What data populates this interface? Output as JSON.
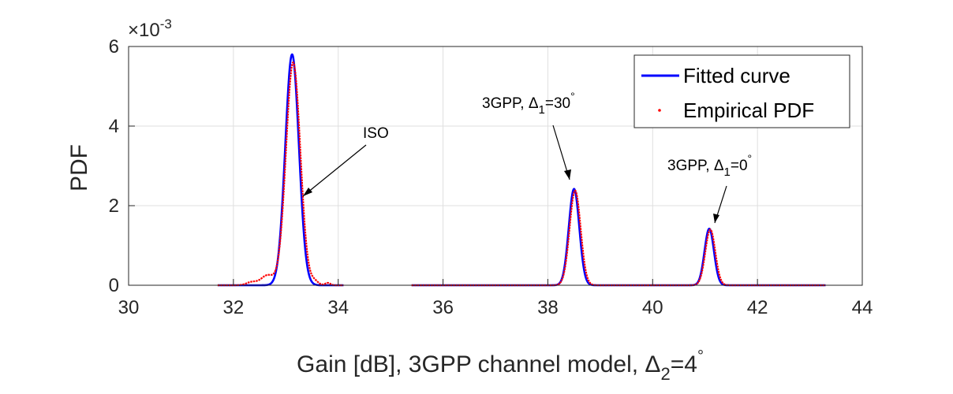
{
  "chart_data": {
    "type": "line",
    "xlabel": {
      "main": "Gain [dB], 3GPP channel model, ",
      "greek": "Δ",
      "sub": "2",
      "tail": "=4",
      "sup": "°"
    },
    "ylabel": "PDF",
    "y_exponent": {
      "prefix": "×10",
      "power": "-3"
    },
    "xlim": [
      30,
      44
    ],
    "ylim": [
      0,
      6
    ],
    "x_ticks": [
      "30",
      "32",
      "34",
      "36",
      "38",
      "40",
      "42",
      "44"
    ],
    "y_ticks": [
      "0",
      "2",
      "4",
      "6"
    ],
    "grid": true,
    "legend": {
      "position": "top-right",
      "entries": [
        {
          "label": "Fitted curve",
          "style": "line",
          "color": "#0000ff"
        },
        {
          "label": "Empirical PDF",
          "style": "dots",
          "color": "#ff0000"
        }
      ]
    },
    "peaks": [
      {
        "name": "ISO",
        "range": [
          31.7,
          34.1
        ],
        "center": 33.12,
        "amplitude_fit": 5.8,
        "amplitude_emp": 5.6,
        "width": 0.13
      },
      {
        "name": "3GPP30",
        "range": [
          35.4,
          39.9
        ],
        "center": 38.5,
        "amplitude_fit": 2.42,
        "amplitude_emp": 2.38,
        "width": 0.1
      },
      {
        "name": "3GPP0",
        "range": [
          39.9,
          43.3
        ],
        "center": 41.08,
        "amplitude_fit": 1.42,
        "amplitude_emp": 1.4,
        "width": 0.09
      }
    ],
    "annotations": [
      {
        "id": "iso",
        "text": "ISO",
        "arrow_to": [
          33.25,
          2.2
        ]
      },
      {
        "id": "g30",
        "text": "3GPP, ",
        "greek": "Δ",
        "sub": "1",
        "tail": "=30",
        "sup": "°",
        "arrow_to": [
          38.5,
          2.6
        ]
      },
      {
        "id": "g0",
        "text": "3GPP, ",
        "greek": "Δ",
        "sub": "1",
        "tail": "=0",
        "sup": "°",
        "arrow_to": [
          41.1,
          1.55
        ]
      }
    ],
    "colors": {
      "fitted": "#0000ff",
      "empirical": "#ff0000",
      "grid": "#dfdfdf",
      "axis": "#262626"
    }
  }
}
